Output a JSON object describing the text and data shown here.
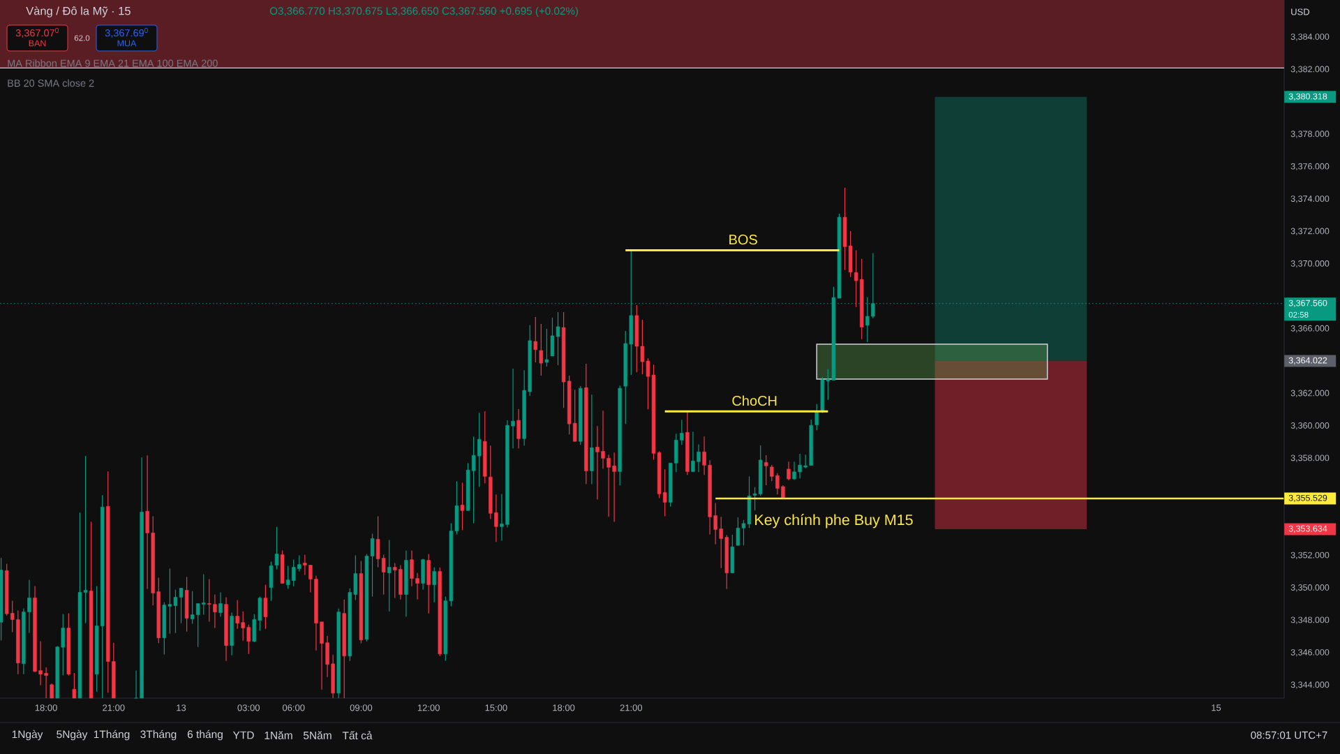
{
  "chart_data": {
    "type": "candlestick",
    "title": "Vàng / Đô la Mỹ · 15",
    "categories": [
      null,
      null,
      null,
      null,
      null,
      null,
      null,
      null,
      "18:00",
      null,
      null,
      null,
      null,
      null,
      null,
      null,
      null,
      null,
      null,
      null,
      "21:00",
      null,
      null,
      null,
      null,
      null,
      null,
      null,
      null,
      null,
      null,
      null,
      "13",
      null,
      null,
      null,
      null,
      null,
      null,
      null,
      null,
      null,
      null,
      null,
      "03:00",
      null,
      null,
      null,
      null,
      null,
      null,
      null,
      "06:00",
      null,
      null,
      null,
      null,
      null,
      null,
      null,
      null,
      null,
      null,
      null,
      "09:00",
      null,
      null,
      null,
      null,
      null,
      null,
      null,
      null,
      null,
      null,
      null,
      "12:00",
      null,
      null,
      null,
      null,
      null,
      null,
      null,
      null,
      null,
      null,
      null,
      "15:00",
      null,
      null,
      null,
      null,
      null,
      null,
      null,
      null,
      null,
      null,
      null,
      "18:00",
      null,
      null,
      null,
      null,
      null,
      null,
      null,
      null,
      null,
      null,
      null,
      "21:00",
      null,
      null,
      null,
      null,
      null,
      null,
      null,
      null,
      null,
      null,
      null,
      null,
      null,
      null,
      null,
      null,
      null,
      null,
      null,
      null,
      null,
      null,
      null,
      null,
      null,
      null,
      null,
      null,
      null,
      null,
      null,
      null,
      null,
      null,
      null,
      null,
      null,
      null,
      null,
      null,
      null,
      null,
      null,
      null,
      null,
      null,
      null,
      null,
      null,
      null,
      null,
      null,
      null,
      null,
      null,
      null,
      null,
      null,
      null,
      null,
      null,
      null,
      null,
      null,
      null,
      null,
      null,
      null,
      null,
      null,
      null,
      null,
      null,
      null,
      null,
      null,
      null,
      null,
      null,
      null,
      null,
      null,
      null,
      null,
      null,
      null,
      null,
      null,
      null,
      null,
      null,
      null,
      null,
      null,
      null,
      null,
      null,
      null,
      null,
      null,
      null,
      null,
      null,
      "15",
      null,
      null,
      null,
      null,
      null,
      null,
      null,
      null,
      null,
      null,
      null,
      null
    ],
    "ohlc": [
      [
        3347.89,
        3351.85,
        3346.77,
        3351.11
      ],
      [
        3351.07,
        3351.5,
        3348.3,
        3348.41
      ],
      [
        3348.44,
        3349.21,
        3347.27,
        3348.05
      ],
      [
        3348.05,
        3348.61,
        3344.68,
        3345.37
      ],
      [
        3345.33,
        3348.74,
        3344.68,
        3348.52
      ],
      [
        3348.52,
        3350.51,
        3347.23,
        3349.39
      ],
      [
        3349.39,
        3350.12,
        3344.8,
        3344.85
      ],
      [
        3344.9,
        3346.71,
        3344.0,
        3344.68
      ],
      [
        3344.74,
        3345.11,
        3343.2,
        3344.6
      ],
      [
        3344.03,
        3344.1,
        3343.2,
        3343.2
      ],
      [
        3343.2,
        3346.41,
        3343.2,
        3346.36
      ],
      [
        3346.34,
        3348.39,
        3344.61,
        3347.53
      ],
      [
        3347.53,
        3348.44,
        3344.6,
        3344.68
      ],
      [
        3343.75,
        3344.75,
        3343.2,
        3343.2
      ],
      [
        3343.2,
        3354.65,
        3343.2,
        3349.73
      ],
      [
        3349.73,
        3358.15,
        3347.83,
        3349.86
      ],
      [
        3349.82,
        3354.09,
        3343.2,
        3343.2
      ],
      [
        3344.68,
        3350.12,
        3343.6,
        3347.66
      ],
      [
        3347.66,
        3355.73,
        3343.2,
        3355.0
      ],
      [
        3355.04,
        3357.2,
        3343.53,
        3345.46
      ],
      [
        3345.46,
        3346.62,
        3343.2,
        3343.2
      ],
      null,
      null,
      null,
      [
        3343.2,
        3344.9,
        3343.2,
        3343.2
      ],
      [
        3343.2,
        3358.06,
        3343.2,
        3354.69
      ],
      [
        3354.74,
        3358.19,
        3349.95,
        3353.4
      ],
      [
        3353.4,
        3354.43,
        3348.92,
        3349.69
      ],
      [
        3349.77,
        3350.63,
        3346.59,
        3346.92
      ],
      [
        3346.92,
        3349.12,
        3345.89,
        3348.95
      ],
      [
        3348.87,
        3351.2,
        3347.18,
        3348.99
      ],
      [
        3348.91,
        3349.9,
        3347.22,
        3349.43
      ],
      [
        3349.43,
        3349.99,
        3347.83,
        3349.99
      ],
      [
        3349.86,
        3350.68,
        3347.31,
        3348.13
      ],
      [
        3348.09,
        3349.81,
        3347.79,
        3348.35
      ],
      [
        3348.35,
        3349.04,
        3346.36,
        3349.04
      ],
      [
        3348.99,
        3350.85,
        3348.35,
        3349.08
      ],
      [
        3349.04,
        3350.55,
        3347.92,
        3348.99
      ],
      [
        3348.99,
        3349.6,
        3347.53,
        3348.52
      ],
      [
        3348.48,
        3349.73,
        3348.22,
        3349.04
      ],
      [
        3348.99,
        3349.43,
        3345.5,
        3346.45
      ],
      [
        3346.45,
        3348.48,
        3345.85,
        3348.26
      ],
      [
        3348.26,
        3349.25,
        3347.48,
        3347.83
      ],
      [
        3347.87,
        3348.56,
        3346.75,
        3347.53
      ],
      [
        3347.57,
        3347.74,
        3345.93,
        3346.71
      ],
      [
        3346.71,
        3348.39,
        3346.66,
        3348.05
      ],
      [
        3348.0,
        3349.47,
        3347.36,
        3349.38
      ],
      [
        3349.38,
        3350.2,
        3347.48,
        3348.22
      ],
      [
        3350.03,
        3351.63,
        3349.21,
        3351.37
      ],
      [
        3351.41,
        3353.78,
        3351.15,
        3352.1
      ],
      [
        3352.06,
        3352.32,
        3350.29,
        3350.29
      ],
      [
        3350.2,
        3351.37,
        3349.94,
        3350.5
      ],
      [
        3350.46,
        3351.75,
        3350.11,
        3351.28
      ],
      [
        3351.19,
        3352.01,
        3351.02,
        3351.45
      ],
      [
        3351.54,
        3352.06,
        3350.81,
        3351.41
      ],
      [
        3351.41,
        3351.41,
        3349.73,
        3350.55
      ],
      [
        3350.55,
        3350.76,
        3346.14,
        3347.83
      ],
      [
        3347.91,
        3347.91,
        3343.73,
        3346.58
      ],
      [
        3346.62,
        3347.05,
        3344.5,
        3345.28
      ],
      [
        3345.32,
        3345.88,
        3343.2,
        3343.51
      ],
      [
        3343.51,
        3348.73,
        3343.2,
        3348.52
      ],
      [
        3348.43,
        3349.29,
        3343.2,
        3345.8
      ],
      [
        3345.8,
        3349.98,
        3345.5,
        3349.73
      ],
      [
        3349.6,
        3352.01,
        3349.25,
        3350.89
      ],
      [
        3350.89,
        3351.67,
        3346.58,
        3346.79
      ],
      [
        3346.83,
        3352.1,
        3346.7,
        3351.97
      ],
      [
        3351.97,
        3353.35,
        3349.47,
        3353.05
      ],
      [
        3353.01,
        3354.43,
        3351.28,
        3351.8
      ],
      [
        3351.84,
        3352.06,
        3349.6,
        3350.98
      ],
      [
        3350.93,
        3352.96,
        3348.56,
        3351.28
      ],
      [
        3351.28,
        3351.54,
        3349.38,
        3351.11
      ],
      [
        3351.15,
        3351.41,
        3349.29,
        3349.6
      ],
      [
        3349.6,
        3352.32,
        3348.22,
        3351.71
      ],
      [
        3351.75,
        3352.32,
        3350.11,
        3350.59
      ],
      [
        3350.59,
        3350.93,
        3349.29,
        3350.29
      ],
      [
        3350.29,
        3351.8,
        3349.9,
        3351.75
      ],
      [
        3351.71,
        3352.1,
        3348.43,
        3350.2
      ],
      [
        3350.2,
        3351.28,
        3349.12,
        3351.02
      ],
      [
        3351.02,
        3351.27,
        3345.8,
        3345.93
      ],
      [
        3345.93,
        3349.47,
        3345.51,
        3349.21
      ],
      [
        3349.2,
        3354.0,
        3348.87,
        3353.52
      ],
      [
        3353.52,
        3356.59,
        3353.31,
        3355.08
      ],
      [
        3355.12,
        3356.5,
        3353.57,
        3354.78
      ],
      [
        3354.78,
        3357.71,
        3354.78,
        3357.28
      ],
      [
        3357.24,
        3359.35,
        3354.0,
        3358.19
      ],
      [
        3358.15,
        3360.82,
        3356.25,
        3359.18
      ],
      [
        3359.05,
        3360.91,
        3356.46,
        3356.89
      ],
      [
        3356.85,
        3358.79,
        3354.26,
        3354.61
      ],
      [
        3354.65,
        3355.77,
        3352.84,
        3353.79
      ],
      [
        3353.79,
        3355.81,
        3352.92,
        3353.96
      ],
      [
        3353.92,
        3360.35,
        3353.74,
        3360.04
      ],
      [
        3360.0,
        3363.54,
        3358.62,
        3360.3
      ],
      [
        3360.35,
        3361.04,
        3358.62,
        3359.22
      ],
      [
        3359.22,
        3363.45,
        3358.79,
        3362.2
      ],
      [
        3362.12,
        3366.22,
        3361.86,
        3365.27
      ],
      [
        3365.22,
        3366.73,
        3363.93,
        3364.71
      ],
      [
        3364.66,
        3366.3,
        3363.11,
        3363.88
      ],
      [
        3363.93,
        3366.0,
        3363.67,
        3364.1
      ],
      [
        3364.32,
        3366.69,
        3364.32,
        3365.57
      ],
      [
        3365.52,
        3367.03,
        3363.75,
        3366.13
      ],
      [
        3366.08,
        3367.03,
        3361.12,
        3362.72
      ],
      [
        3362.77,
        3363.11,
        3359.48,
        3360.13
      ],
      [
        3360.17,
        3362.24,
        3359.05,
        3359.05
      ],
      [
        3359.05,
        3362.46,
        3358.83,
        3362.33
      ],
      [
        3362.37,
        3363.84,
        3356.41,
        3357.23
      ],
      [
        3357.23,
        3361.94,
        3356.41,
        3358.66
      ],
      [
        3358.7,
        3360.0,
        3355.46,
        3358.4
      ],
      [
        3358.44,
        3360.95,
        3357.36,
        3358.01
      ],
      [
        3358.01,
        3358.23,
        3354.39,
        3357.45
      ],
      [
        3357.54,
        3358.36,
        3354.08,
        3357.19
      ],
      [
        3357.19,
        3362.5,
        3356.33,
        3362.33
      ],
      [
        3362.46,
        3365.87,
        3360.13,
        3365.09
      ],
      [
        3365.05,
        3370.79,
        3363.15,
        3366.82
      ],
      [
        3366.82,
        3367.46,
        3363.32,
        3364.92
      ],
      [
        3364.92,
        3366.56,
        3363.19,
        3363.97
      ],
      [
        3364.01,
        3364.18,
        3361.03,
        3363.06
      ],
      [
        3363.15,
        3363.79,
        3357.92,
        3358.31
      ],
      [
        3358.36,
        3358.44,
        3355.55,
        3355.81
      ],
      [
        3355.9,
        3357.32,
        3354.43,
        3355.29
      ],
      [
        3355.29,
        3357.71,
        3355.03,
        3357.71
      ],
      [
        3357.71,
        3359.52,
        3357.15,
        3359.13
      ],
      [
        3359.13,
        3360.38,
        3358.83,
        3359.56
      ],
      [
        3359.61,
        3360.86,
        3356.98,
        3357.19
      ],
      [
        3357.19,
        3359.65,
        3357.15,
        3357.84
      ],
      [
        3357.8,
        3358.87,
        3357.15,
        3358.4
      ],
      [
        3358.4,
        3359.35,
        3356.98,
        3357.58
      ],
      [
        3357.58,
        3357.88,
        3353.31,
        3354.39
      ],
      [
        3354.47,
        3355.25,
        3352.7,
        3353.61
      ],
      [
        3353.65,
        3354.39,
        3351.23,
        3353.05
      ],
      [
        3353.13,
        3353.26,
        3349.94,
        3350.93
      ],
      [
        3350.93,
        3353.29,
        3350.92,
        3352.54
      ],
      [
        3352.63,
        3354.37,
        3352.63,
        3353.7
      ],
      [
        3353.7,
        3354.2,
        3352.63,
        3353.98
      ],
      [
        3353.95,
        3356.89,
        3353.7,
        3355.69
      ],
      [
        3355.72,
        3356.23,
        3354.78,
        3355.82
      ],
      [
        3355.8,
        3358.8,
        3355.69,
        3357.9
      ],
      [
        3357.75,
        3358.2,
        3356.35,
        3357.54
      ],
      [
        3357.47,
        3357.59,
        3356.59,
        3356.89
      ],
      [
        3356.94,
        3357.09,
        3355.77,
        3356.15
      ],
      [
        3356.26,
        3356.35,
        3355.49,
        3355.57
      ],
      [
        3357.34,
        3357.8,
        3356.65,
        3356.73
      ],
      [
        3356.73,
        3357.8,
        3356.68,
        3357.17
      ],
      [
        3357.17,
        3358.28,
        3356.76,
        3357.59
      ],
      [
        3357.46,
        3358.23,
        3357.39,
        3357.55
      ],
      [
        3357.57,
        3360.4,
        3357.57,
        3360.04
      ],
      [
        3360.07,
        3361.36,
        3359.74,
        3360.87
      ],
      [
        3360.87,
        3363.01,
        3360.81,
        3362.85
      ],
      [
        3362.77,
        3363.51,
        3361.61,
        3362.88
      ],
      [
        3362.83,
        3368.59,
        3362.83,
        3367.93
      ],
      [
        3367.89,
        3373.11,
        3367.89,
        3372.89
      ],
      [
        3372.89,
        3374.71,
        3369.63,
        3371.07
      ],
      [
        3371.12,
        3372.03,
        3369.2,
        3369.5
      ],
      [
        3369.47,
        3370.85,
        3367.35,
        3368.97
      ],
      [
        3369.05,
        3370.32,
        3365.36,
        3366.11
      ],
      [
        3366.22,
        3367.96,
        3365.18,
        3366.77
      ],
      [
        3366.77,
        3370.675,
        3366.65,
        3367.56
      ],
      null,
      null,
      null,
      null,
      null,
      null,
      null,
      null,
      null,
      null,
      null,
      null,
      null,
      null,
      null,
      null,
      null,
      null,
      null,
      null,
      null,
      null,
      null,
      null,
      null,
      null,
      null,
      null,
      null,
      null,
      null,
      null,
      null,
      null,
      null,
      null,
      null,
      null,
      null,
      null,
      null,
      null,
      null,
      null,
      null,
      null,
      null,
      null,
      null,
      null,
      null,
      null,
      null,
      null,
      null,
      null,
      null,
      null,
      null,
      null,
      null,
      null,
      null,
      null,
      null,
      null,
      null,
      null,
      null,
      null,
      null,
      null,
      null
    ],
    "colors": [
      "#089981",
      "#f23645",
      "#f23645",
      "#f23645",
      "#089981",
      "#089981",
      "#f23645",
      "#f23645",
      "#f23645",
      "#f23645",
      "#089981",
      "#089981",
      "#f23645",
      "#f23645",
      "#089981",
      "#089981",
      "#f23645",
      "#089981",
      "#089981",
      "#f23645",
      "#f23645",
      null,
      null,
      null,
      "#089981",
      "#089981",
      "#f23645",
      "#f23645",
      "#f23645",
      "#089981",
      "#089981",
      "#089981",
      "#089981",
      "#f23645",
      "#089981",
      "#089981",
      "#089981",
      "#f23645",
      "#f23645",
      "#089981",
      "#f23645",
      "#089981",
      "#f23645",
      "#f23645",
      "#f23645",
      "#089981",
      "#089981",
      "#f23645",
      "#089981",
      "#089981",
      "#f23645",
      "#089981",
      "#089981",
      "#089981",
      "#f23645",
      "#f23645",
      "#f23645",
      "#f23645",
      "#f23645",
      "#f23645",
      "#089981",
      "#f23645",
      "#089981",
      "#089981",
      "#f23645",
      "#089981",
      "#089981",
      "#f23645",
      "#f23645",
      "#089981",
      "#f23645",
      "#f23645",
      "#089981",
      "#f23645",
      "#f23645",
      "#089981",
      "#f23645",
      "#089981",
      "#f23645",
      "#089981",
      "#089981",
      "#089981",
      "#f23645",
      "#089981",
      "#089981",
      "#089981",
      "#f23645",
      "#f23645",
      "#f23645",
      "#089981",
      "#089981",
      "#089981",
      "#f23645",
      "#089981",
      "#089981",
      "#f23645",
      "#f23645",
      "#089981",
      "#089981",
      "#089981",
      "#f23645",
      "#f23645",
      "#f23645",
      "#089981",
      "#f23645",
      "#089981",
      "#f23645",
      "#f23645",
      "#f23645",
      "#f23645",
      "#089981",
      "#089981",
      "#089981",
      "#f23645",
      "#f23645",
      "#f23645",
      "#f23645",
      "#f23645",
      "#f23645",
      "#089981",
      "#089981",
      "#089981",
      "#f23645",
      "#089981",
      "#089981",
      "#f23645",
      "#f23645",
      "#f23645",
      "#f23645",
      "#f23645",
      "#089981",
      "#089981",
      "#089981",
      "#089981",
      "#089981",
      "#089981",
      "#f23645",
      "#f23645",
      "#f23645",
      "#f23645",
      "#f23645",
      "#089981",
      "#089981",
      "#089981",
      "#089981",
      "#089981",
      "#089981",
      "#089981",
      "#089981",
      "#089981",
      "#f23645",
      "#f23645",
      "#f23645",
      "#f23645",
      "#089981",
      "#089981",
      null,
      null,
      null,
      null,
      null,
      null,
      null,
      null,
      null,
      null,
      null,
      null,
      null,
      null,
      null,
      null,
      null,
      null,
      null,
      null,
      null,
      null,
      null,
      null,
      null,
      null,
      null,
      null,
      null,
      null,
      null,
      null,
      null,
      null,
      null,
      null,
      null,
      null,
      null,
      null,
      null,
      null,
      null,
      null,
      null,
      null,
      null,
      null,
      null,
      null,
      null,
      null,
      null,
      null,
      null,
      null,
      null,
      null,
      null,
      null,
      null,
      null,
      null,
      null,
      null,
      null,
      null,
      null,
      null,
      null,
      null,
      null,
      null
    ],
    "ylim": [
      3343.2,
      3386.3
    ],
    "yticks": [
      {
        "value": 3344,
        "label": "3,344.000"
      },
      {
        "value": 3346,
        "label": "3,346.000"
      },
      {
        "value": 3348,
        "label": "3,348.000"
      },
      {
        "value": 3350,
        "label": "3,350.000"
      },
      {
        "value": 3352,
        "label": "3,352.000"
      },
      {
        "value": 3358,
        "label": "3,358.000"
      },
      {
        "value": 3360,
        "label": "3,360.000"
      },
      {
        "value": 3362,
        "label": "3,362.000"
      },
      {
        "value": 3366,
        "label": "3,366.000"
      },
      {
        "value": 3370,
        "label": "3,370.000"
      },
      {
        "value": 3372,
        "label": "3,372.000"
      },
      {
        "value": 3374,
        "label": "3,374.000"
      },
      {
        "value": 3376,
        "label": "3,376.000"
      },
      {
        "value": 3378,
        "label": "3,378.000"
      },
      {
        "value": 3382,
        "label": "3,382.000"
      },
      {
        "value": 3384,
        "label": "3,384.000"
      }
    ],
    "series": [
      {
        "type": "line",
        "name": "BOS",
        "color": "#ffeb3b",
        "values": [
          null,
          null,
          null,
          null,
          null,
          null,
          null,
          null,
          null,
          null,
          null,
          null,
          null,
          null,
          null,
          null,
          null,
          null,
          null,
          null,
          null,
          null,
          null,
          null,
          null,
          null,
          null,
          null,
          null,
          null,
          null,
          null,
          null,
          null,
          null,
          null,
          null,
          null,
          null,
          null,
          null,
          null,
          null,
          null,
          null,
          null,
          null,
          null,
          null,
          null,
          null,
          null,
          null,
          null,
          null,
          null,
          null,
          null,
          null,
          null,
          null,
          null,
          null,
          null,
          null,
          null,
          null,
          null,
          null,
          null,
          null,
          null,
          null,
          null,
          null,
          null,
          null,
          null,
          null,
          null,
          null,
          null,
          null,
          null,
          null,
          null,
          null,
          null,
          null,
          null,
          null,
          null,
          null,
          null,
          null,
          null,
          null,
          null,
          null,
          null,
          null,
          null,
          null,
          null,
          null,
          null,
          null,
          null,
          null,
          null,
          null,
          3370.85,
          3370.85,
          3370.85,
          3370.85,
          3370.85,
          3370.85,
          3370.85,
          3370.85,
          3370.85,
          3370.85,
          3370.85,
          3370.85,
          3370.85,
          3370.85,
          3370.85,
          3370.85,
          3370.85,
          3370.85,
          3370.85,
          3370.85,
          3370.85,
          3370.85,
          3370.85,
          3370.85,
          3370.85,
          3370.85,
          3370.85,
          3370.85,
          3370.85,
          3370.85,
          3370.85,
          3370.85,
          3370.85,
          3370.85,
          3370.85,
          3370.85,
          3370.85,
          3370.85,
          3370.85,
          null,
          null,
          null,
          null,
          null,
          null,
          null,
          null,
          null,
          null,
          null,
          null,
          null,
          null,
          null,
          null,
          null,
          null,
          null,
          null,
          null,
          null,
          null,
          null,
          null,
          null,
          null,
          null,
          null,
          null,
          null,
          null,
          null,
          null,
          null,
          null,
          null,
          null,
          null,
          null,
          null,
          null,
          null,
          null,
          null,
          null,
          null,
          null,
          null,
          null,
          null,
          null,
          null,
          null,
          null,
          null,
          null,
          null,
          null,
          null,
          null,
          null,
          null,
          null,
          null,
          null,
          null,
          null,
          null,
          null,
          null,
          null,
          null,
          null,
          null,
          null,
          null,
          null,
          null
        ]
      },
      {
        "type": "line",
        "name": "ChoCH",
        "color": "#ffeb3b",
        "values": [
          null,
          null,
          null,
          null,
          null,
          null,
          null,
          null,
          null,
          null,
          null,
          null,
          null,
          null,
          null,
          null,
          null,
          null,
          null,
          null,
          null,
          null,
          null,
          null,
          null,
          null,
          null,
          null,
          null,
          null,
          null,
          null,
          null,
          null,
          null,
          null,
          null,
          null,
          null,
          null,
          null,
          null,
          null,
          null,
          null,
          null,
          null,
          null,
          null,
          null,
          null,
          null,
          null,
          null,
          null,
          null,
          null,
          null,
          null,
          null,
          null,
          null,
          null,
          null,
          null,
          null,
          null,
          null,
          null,
          null,
          null,
          null,
          null,
          null,
          null,
          null,
          null,
          null,
          null,
          null,
          null,
          null,
          null,
          null,
          null,
          null,
          null,
          null,
          null,
          null,
          null,
          null,
          null,
          null,
          null,
          null,
          null,
          null,
          null,
          null,
          null,
          null,
          null,
          null,
          null,
          null,
          null,
          null,
          null,
          null,
          null,
          null,
          null,
          null,
          null,
          null,
          null,
          null,
          3360.9,
          3360.9,
          3360.9,
          3360.9,
          3360.9,
          3360.9,
          3360.9,
          3360.9,
          3360.9,
          3360.9,
          3360.9,
          3360.9,
          3360.9,
          3360.9,
          3360.9,
          3360.9,
          3360.9,
          3360.9,
          3360.9,
          3360.9,
          3360.9,
          3360.9,
          3360.9,
          3360.9,
          3360.9,
          3360.9,
          3360.9,
          3360.9,
          3360.9,
          3360.9,
          null,
          null,
          null,
          null,
          null,
          null,
          null,
          null,
          null,
          null,
          null,
          null,
          null,
          null,
          null,
          null,
          null,
          null,
          null,
          null,
          null,
          null,
          null,
          null,
          null,
          null,
          null,
          null,
          null,
          null,
          null,
          null,
          null,
          null,
          null,
          null,
          null,
          null,
          null,
          null,
          null,
          null,
          null,
          null,
          null,
          null,
          null,
          null,
          null,
          null,
          null,
          null,
          null,
          null,
          null,
          null,
          null,
          null,
          null,
          null,
          null,
          null,
          null,
          null,
          null,
          null,
          null,
          null,
          null,
          null,
          null,
          null,
          null,
          null,
          null,
          null,
          null,
          null,
          null,
          null,
          null
        ]
      },
      {
        "type": "line",
        "name": "Key chính phe Buy M15",
        "color": "#ffeb3b",
        "values": [
          null,
          null,
          null,
          null,
          null,
          null,
          null,
          null,
          null,
          null,
          null,
          null,
          null,
          null,
          null,
          null,
          null,
          null,
          null,
          null,
          null,
          null,
          null,
          null,
          null,
          null,
          null,
          null,
          null,
          null,
          null,
          null,
          null,
          null,
          null,
          null,
          null,
          null,
          null,
          null,
          null,
          null,
          null,
          null,
          null,
          null,
          null,
          null,
          null,
          null,
          null,
          null,
          null,
          null,
          null,
          null,
          null,
          null,
          null,
          null,
          null,
          null,
          null,
          null,
          null,
          null,
          null,
          null,
          null,
          null,
          null,
          null,
          null,
          null,
          null,
          null,
          null,
          null,
          null,
          null,
          null,
          null,
          null,
          null,
          null,
          null,
          null,
          null,
          null,
          null,
          null,
          null,
          null,
          null,
          null,
          null,
          null,
          null,
          null,
          null,
          null,
          null,
          null,
          null,
          null,
          null,
          null,
          null,
          null,
          null,
          null,
          null,
          null,
          null,
          null,
          null,
          null,
          null,
          null,
          null,
          null,
          null,
          null,
          null,
          null,
          null,
          null,
          3355.529,
          3355.529,
          3355.529,
          3355.529,
          3355.529,
          3355.529,
          3355.529,
          3355.529,
          3355.529,
          3355.529,
          3355.529,
          3355.529,
          3355.529,
          3355.529,
          3355.529,
          3355.529,
          3355.529,
          3355.529,
          3355.529,
          3355.529,
          3355.529,
          3355.529,
          3355.529,
          3355.529,
          3355.529,
          3355.529,
          3355.529,
          3355.529,
          3355.529,
          3355.529,
          3355.529,
          3355.529,
          3355.529,
          3355.529,
          3355.529,
          3355.529,
          3355.529,
          3355.529,
          3355.529,
          3355.529,
          3355.529,
          3355.529,
          3355.529,
          3355.529,
          3355.529,
          3355.529,
          3355.529,
          3355.529,
          3355.529,
          3355.529,
          3355.529,
          3355.529,
          3355.529,
          3355.529,
          3355.529,
          3355.529,
          3355.529,
          3355.529,
          3355.529,
          3355.529,
          3355.529,
          3355.529,
          3355.529,
          3355.529,
          3355.529,
          3355.529,
          3355.529,
          3355.529,
          3355.529,
          3355.529,
          3355.529,
          3355.529,
          3355.529,
          3355.529,
          3355.529,
          3355.529,
          3355.529,
          3355.529,
          3355.529,
          3355.529,
          3355.529,
          3355.529,
          3355.529,
          3355.529,
          3355.529,
          3355.529,
          3355.529,
          3355.529,
          3355.529,
          3355.529,
          3355.529,
          3355.529,
          3355.529,
          3355.529,
          3355.529,
          3355.529,
          3355.529,
          3355.529,
          3355.529,
          3355.529,
          3355.529,
          3355.529
        ],
        "value_labels": [
          null,
          null,
          null,
          null,
          null,
          null,
          null,
          null,
          null,
          null,
          null,
          null,
          null,
          null,
          null,
          null,
          null,
          null,
          null,
          null,
          null,
          null,
          null,
          null,
          null,
          null,
          null,
          null,
          null,
          null,
          null,
          null,
          null,
          null,
          null,
          null,
          null,
          null,
          null,
          null,
          null,
          null,
          null,
          null,
          null,
          null,
          null,
          null,
          null,
          null,
          null,
          null,
          null,
          null,
          null,
          null,
          null,
          null,
          null,
          null,
          null,
          null,
          null,
          null,
          null,
          null,
          null,
          null,
          null,
          null,
          null,
          null,
          null,
          null,
          null,
          null,
          null,
          null,
          null,
          null,
          null,
          null,
          null,
          null,
          null,
          null,
          null,
          null,
          null,
          null,
          null,
          null,
          null,
          null,
          null,
          null,
          null,
          null,
          null,
          null,
          null,
          null,
          null,
          null,
          null,
          null,
          null,
          null,
          null,
          null,
          null,
          null,
          null,
          null,
          null,
          null,
          null,
          null,
          null,
          null,
          null,
          null,
          null,
          null,
          null,
          null,
          null,
          null,
          null,
          null,
          null,
          null,
          null,
          null,
          null,
          null,
          null,
          null,
          null,
          null,
          null,
          null,
          null,
          null,
          null,
          null,
          null,
          null,
          null,
          null,
          null,
          null,
          null,
          null,
          null,
          null,
          null,
          null,
          null,
          null,
          null,
          null,
          null,
          null,
          null,
          null,
          null,
          null,
          null,
          null,
          null,
          null,
          null,
          null,
          null,
          null,
          null,
          null,
          null,
          null,
          null,
          null,
          null,
          null,
          null,
          null,
          null,
          null,
          null,
          null,
          null,
          null,
          null,
          null,
          null,
          null,
          null,
          null,
          null,
          null,
          null,
          null,
          null,
          null,
          null,
          null,
          null,
          null,
          null,
          null,
          null,
          null,
          null,
          null,
          null,
          null,
          null,
          null,
          null,
          null,
          null,
          null,
          null,
          null,
          null,
          null,
          null,
          null,
          "3,355.529"
        ]
      }
    ],
    "ref_lines": [
      {
        "axis": "y",
        "value": 3367.56,
        "label": "3,367.560",
        "color": "#089981",
        "line_style": "dotted"
      }
    ],
    "bands": [
      {
        "axis": "y",
        "from": 3382.1,
        "to": 3386.3,
        "color": "#5a1d24"
      },
      {
        "axis": "y",
        "from": 3364.022,
        "to": 3380.318,
        "color": "#0f3e37"
      },
      {
        "axis": "y",
        "from": 3353.634,
        "to": 3364.022,
        "color": "#701e28"
      },
      {
        "axis": "y",
        "from": 3362.9,
        "to": 3365.05,
        "color": "#2c4426"
      }
    ],
    "annotations": [
      "O3,366.770 H3,370.675 L3,366.650 C3,367.560 +0.695 (+0.02%)",
      "3,367.07$^{0}$",
      "BAN",
      "62.0",
      "3,367.69$^{0}$",
      "MUA",
      "MA Ribbon EMA 9 EMA 21 EMA 100 EMA 200",
      "BB 20 SMA close 2",
      "USD",
      "3,380.318",
      "02:58",
      "3,364.022",
      "3,353.634",
      "1Ngày",
      "5Ngày",
      "1Tháng",
      "3Tháng",
      "6 tháng",
      "YTD",
      "1Năm",
      "5Năm",
      "Tất cả",
      "08:57:01 UTC+7"
    ]
  }
}
